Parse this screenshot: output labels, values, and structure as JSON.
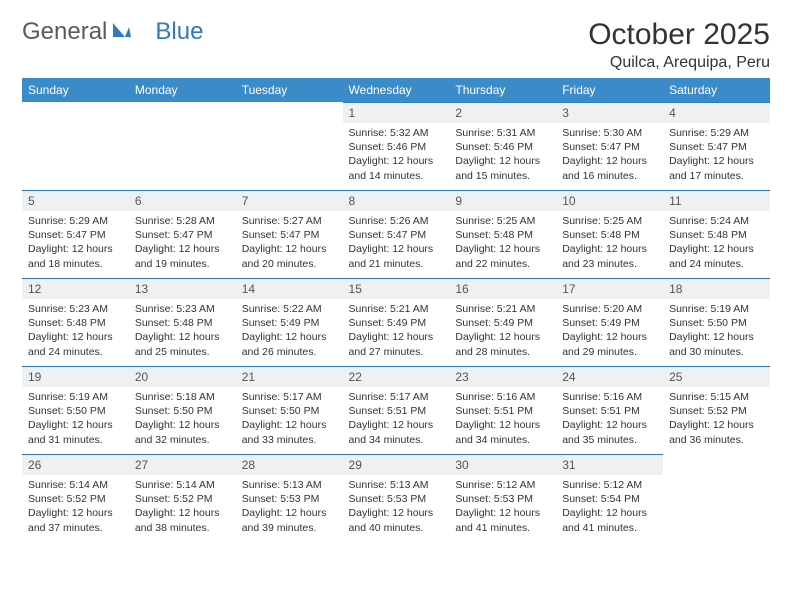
{
  "logo": {
    "part1": "General",
    "part2": "Blue"
  },
  "title": "October 2025",
  "location": "Quilca, Arequipa, Peru",
  "colors": {
    "header_bg": "#3b8bc9",
    "header_text": "#ffffff",
    "daynum_bg": "#eef0f2",
    "accent_line": "#2f7bbf",
    "body_text": "#333333",
    "logo_gray": "#5a5a5a",
    "logo_blue": "#2f7bbf"
  },
  "day_headers": [
    "Sunday",
    "Monday",
    "Tuesday",
    "Wednesday",
    "Thursday",
    "Friday",
    "Saturday"
  ],
  "weeks": [
    [
      {
        "n": "",
        "sr": "",
        "ss": "",
        "dl": "",
        "empty": true
      },
      {
        "n": "",
        "sr": "",
        "ss": "",
        "dl": "",
        "empty": true
      },
      {
        "n": "",
        "sr": "",
        "ss": "",
        "dl": "",
        "empty": true
      },
      {
        "n": "1",
        "sr": "Sunrise: 5:32 AM",
        "ss": "Sunset: 5:46 PM",
        "dl": "Daylight: 12 hours and 14 minutes."
      },
      {
        "n": "2",
        "sr": "Sunrise: 5:31 AM",
        "ss": "Sunset: 5:46 PM",
        "dl": "Daylight: 12 hours and 15 minutes."
      },
      {
        "n": "3",
        "sr": "Sunrise: 5:30 AM",
        "ss": "Sunset: 5:47 PM",
        "dl": "Daylight: 12 hours and 16 minutes."
      },
      {
        "n": "4",
        "sr": "Sunrise: 5:29 AM",
        "ss": "Sunset: 5:47 PM",
        "dl": "Daylight: 12 hours and 17 minutes."
      }
    ],
    [
      {
        "n": "5",
        "sr": "Sunrise: 5:29 AM",
        "ss": "Sunset: 5:47 PM",
        "dl": "Daylight: 12 hours and 18 minutes."
      },
      {
        "n": "6",
        "sr": "Sunrise: 5:28 AM",
        "ss": "Sunset: 5:47 PM",
        "dl": "Daylight: 12 hours and 19 minutes."
      },
      {
        "n": "7",
        "sr": "Sunrise: 5:27 AM",
        "ss": "Sunset: 5:47 PM",
        "dl": "Daylight: 12 hours and 20 minutes."
      },
      {
        "n": "8",
        "sr": "Sunrise: 5:26 AM",
        "ss": "Sunset: 5:47 PM",
        "dl": "Daylight: 12 hours and 21 minutes."
      },
      {
        "n": "9",
        "sr": "Sunrise: 5:25 AM",
        "ss": "Sunset: 5:48 PM",
        "dl": "Daylight: 12 hours and 22 minutes."
      },
      {
        "n": "10",
        "sr": "Sunrise: 5:25 AM",
        "ss": "Sunset: 5:48 PM",
        "dl": "Daylight: 12 hours and 23 minutes."
      },
      {
        "n": "11",
        "sr": "Sunrise: 5:24 AM",
        "ss": "Sunset: 5:48 PM",
        "dl": "Daylight: 12 hours and 24 minutes."
      }
    ],
    [
      {
        "n": "12",
        "sr": "Sunrise: 5:23 AM",
        "ss": "Sunset: 5:48 PM",
        "dl": "Daylight: 12 hours and 24 minutes."
      },
      {
        "n": "13",
        "sr": "Sunrise: 5:23 AM",
        "ss": "Sunset: 5:48 PM",
        "dl": "Daylight: 12 hours and 25 minutes."
      },
      {
        "n": "14",
        "sr": "Sunrise: 5:22 AM",
        "ss": "Sunset: 5:49 PM",
        "dl": "Daylight: 12 hours and 26 minutes."
      },
      {
        "n": "15",
        "sr": "Sunrise: 5:21 AM",
        "ss": "Sunset: 5:49 PM",
        "dl": "Daylight: 12 hours and 27 minutes."
      },
      {
        "n": "16",
        "sr": "Sunrise: 5:21 AM",
        "ss": "Sunset: 5:49 PM",
        "dl": "Daylight: 12 hours and 28 minutes."
      },
      {
        "n": "17",
        "sr": "Sunrise: 5:20 AM",
        "ss": "Sunset: 5:49 PM",
        "dl": "Daylight: 12 hours and 29 minutes."
      },
      {
        "n": "18",
        "sr": "Sunrise: 5:19 AM",
        "ss": "Sunset: 5:50 PM",
        "dl": "Daylight: 12 hours and 30 minutes."
      }
    ],
    [
      {
        "n": "19",
        "sr": "Sunrise: 5:19 AM",
        "ss": "Sunset: 5:50 PM",
        "dl": "Daylight: 12 hours and 31 minutes."
      },
      {
        "n": "20",
        "sr": "Sunrise: 5:18 AM",
        "ss": "Sunset: 5:50 PM",
        "dl": "Daylight: 12 hours and 32 minutes."
      },
      {
        "n": "21",
        "sr": "Sunrise: 5:17 AM",
        "ss": "Sunset: 5:50 PM",
        "dl": "Daylight: 12 hours and 33 minutes."
      },
      {
        "n": "22",
        "sr": "Sunrise: 5:17 AM",
        "ss": "Sunset: 5:51 PM",
        "dl": "Daylight: 12 hours and 34 minutes."
      },
      {
        "n": "23",
        "sr": "Sunrise: 5:16 AM",
        "ss": "Sunset: 5:51 PM",
        "dl": "Daylight: 12 hours and 34 minutes."
      },
      {
        "n": "24",
        "sr": "Sunrise: 5:16 AM",
        "ss": "Sunset: 5:51 PM",
        "dl": "Daylight: 12 hours and 35 minutes."
      },
      {
        "n": "25",
        "sr": "Sunrise: 5:15 AM",
        "ss": "Sunset: 5:52 PM",
        "dl": "Daylight: 12 hours and 36 minutes."
      }
    ],
    [
      {
        "n": "26",
        "sr": "Sunrise: 5:14 AM",
        "ss": "Sunset: 5:52 PM",
        "dl": "Daylight: 12 hours and 37 minutes."
      },
      {
        "n": "27",
        "sr": "Sunrise: 5:14 AM",
        "ss": "Sunset: 5:52 PM",
        "dl": "Daylight: 12 hours and 38 minutes."
      },
      {
        "n": "28",
        "sr": "Sunrise: 5:13 AM",
        "ss": "Sunset: 5:53 PM",
        "dl": "Daylight: 12 hours and 39 minutes."
      },
      {
        "n": "29",
        "sr": "Sunrise: 5:13 AM",
        "ss": "Sunset: 5:53 PM",
        "dl": "Daylight: 12 hours and 40 minutes."
      },
      {
        "n": "30",
        "sr": "Sunrise: 5:12 AM",
        "ss": "Sunset: 5:53 PM",
        "dl": "Daylight: 12 hours and 41 minutes."
      },
      {
        "n": "31",
        "sr": "Sunrise: 5:12 AM",
        "ss": "Sunset: 5:54 PM",
        "dl": "Daylight: 12 hours and 41 minutes."
      },
      {
        "n": "",
        "sr": "",
        "ss": "",
        "dl": "",
        "empty": true
      }
    ]
  ]
}
